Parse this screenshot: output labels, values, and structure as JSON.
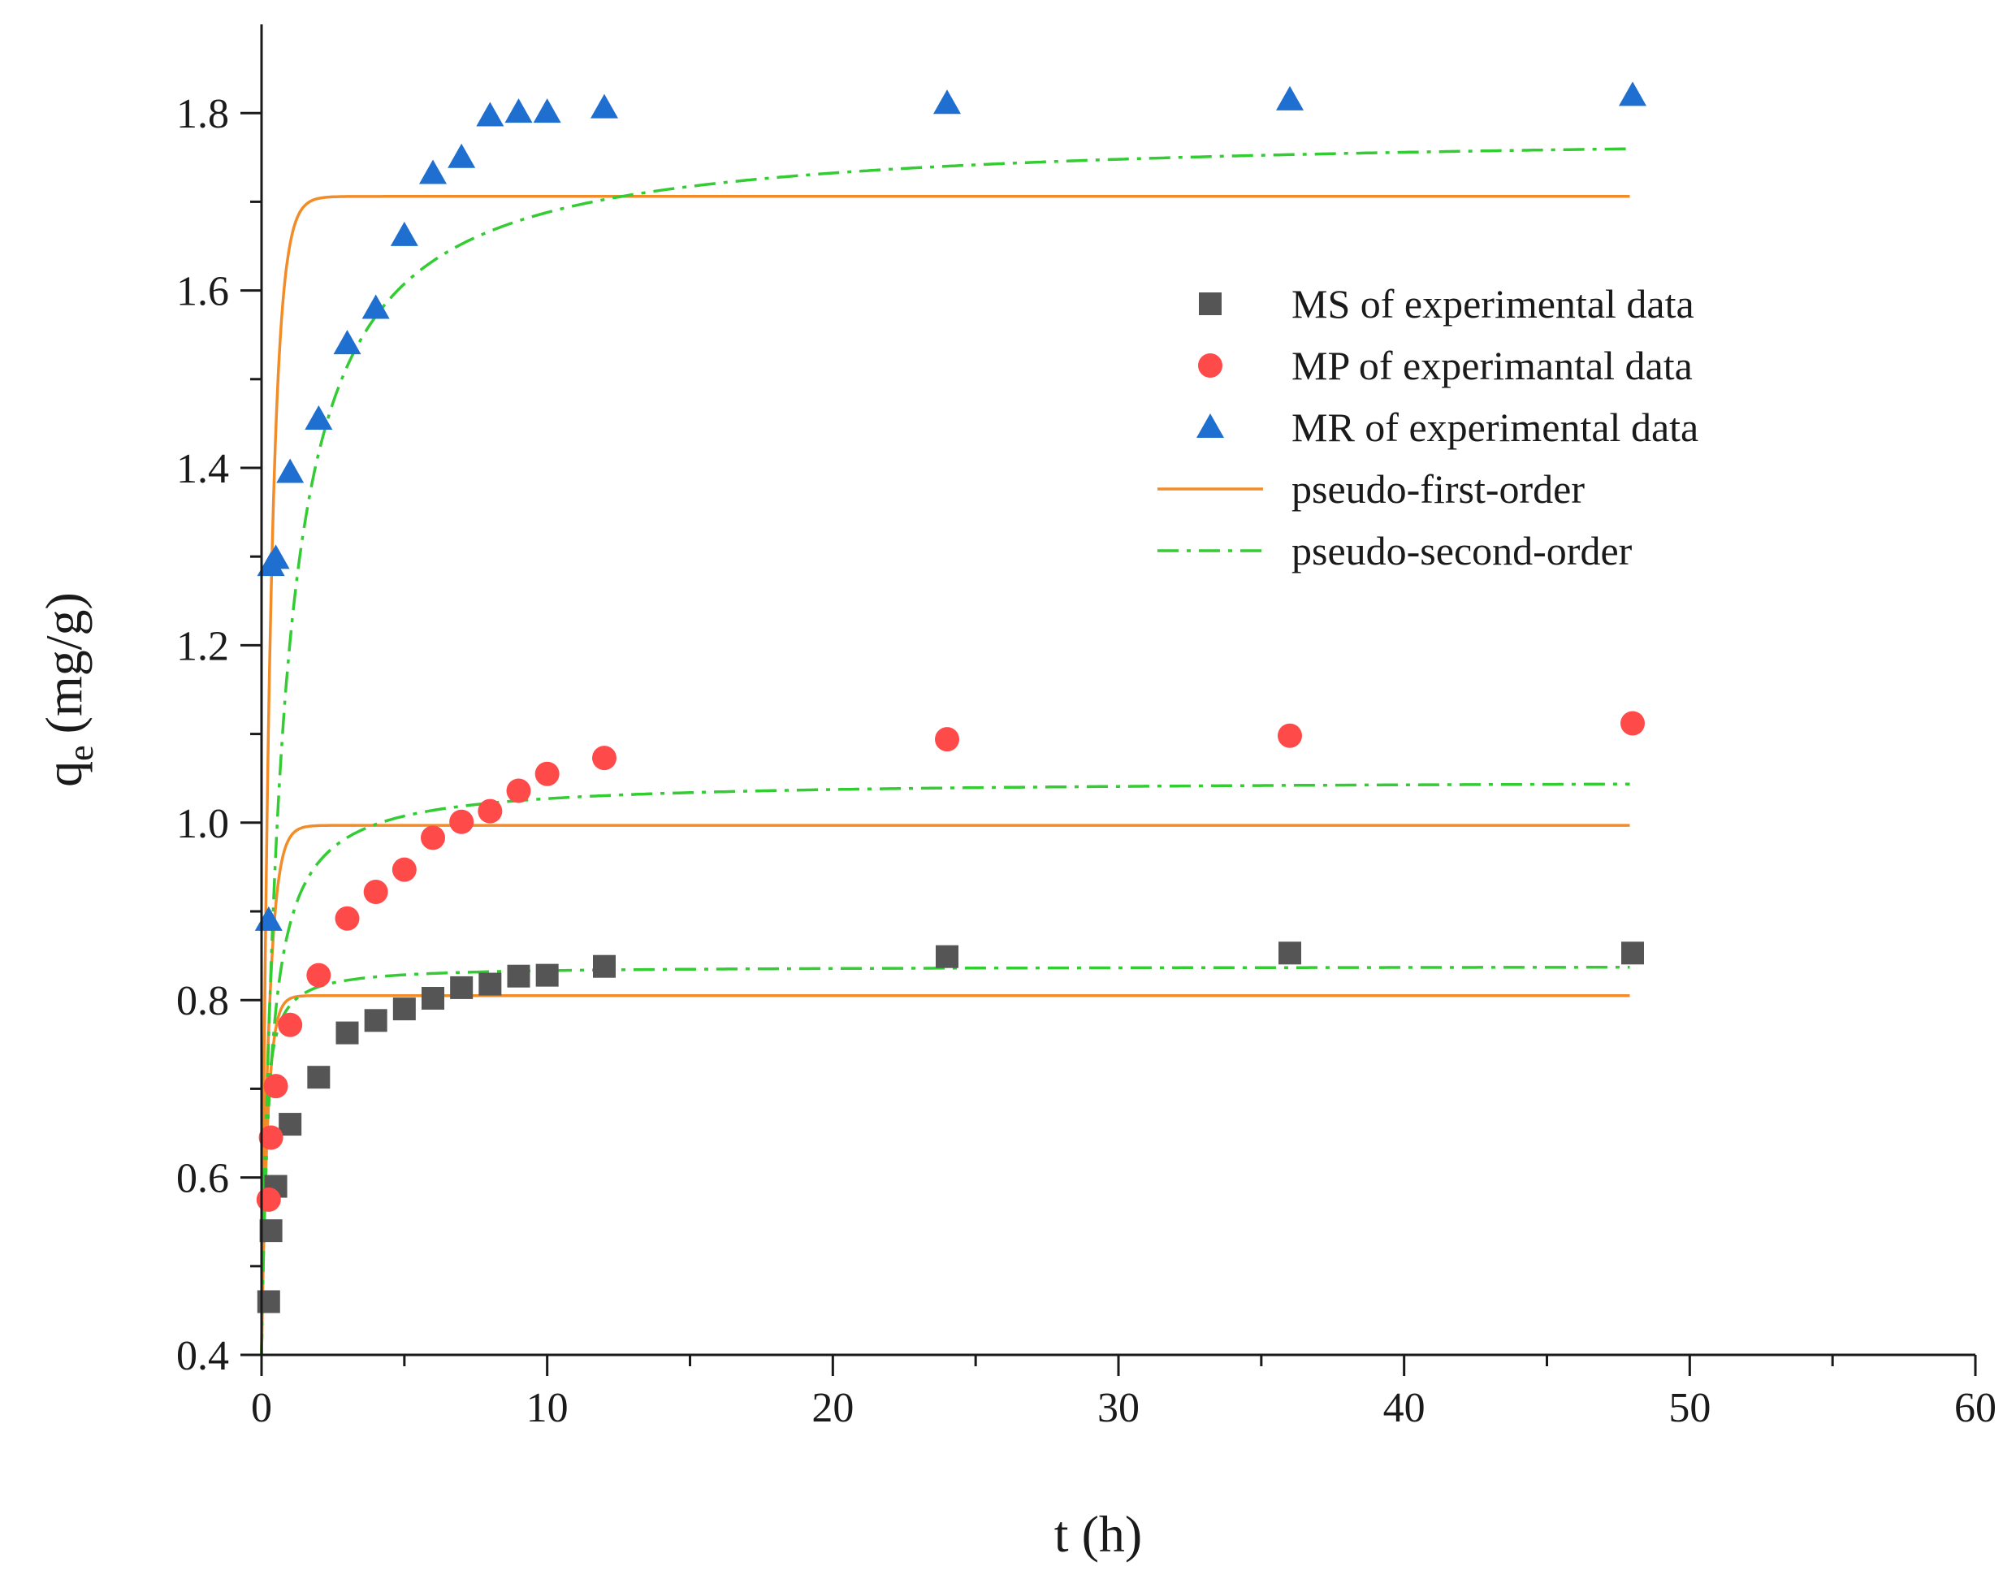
{
  "chart_data": {
    "type": "scatter",
    "xlabel": "t (h)",
    "ylabel_main": "q",
    "ylabel_sub": "e",
    "ylabel_unit": "(mg/g)",
    "xlim": [
      0,
      60
    ],
    "ylim": [
      0.4,
      1.9
    ],
    "x_ticks": [
      0,
      10,
      20,
      30,
      40,
      50,
      60
    ],
    "x_tick_labels": [
      "0",
      "10",
      "20",
      "30",
      "40",
      "50",
      "60"
    ],
    "y_ticks": [
      0.4,
      0.6,
      0.8,
      1.0,
      1.2,
      1.4,
      1.6,
      1.8
    ],
    "y_tick_labels": [
      "0.4",
      "0.6",
      "0.8",
      "1.0",
      "1.2",
      "1.4",
      "1.6",
      "1.8"
    ],
    "grid": false,
    "legend_position": "right-upper",
    "series": [
      {
        "name": "MS of experimental data",
        "marker": "square",
        "color": "#555555",
        "x": [
          0.25,
          0.33,
          0.5,
          1,
          2,
          3,
          4,
          5,
          6,
          7,
          8,
          9,
          10,
          12,
          24,
          36,
          48
        ],
        "y": [
          0.46,
          0.54,
          0.59,
          0.66,
          0.713,
          0.763,
          0.777,
          0.79,
          0.802,
          0.814,
          0.818,
          0.827,
          0.828,
          0.838,
          0.849,
          0.853,
          0.853
        ]
      },
      {
        "name": "MP of experimantal data",
        "marker": "circle",
        "color": "#ff4a4a",
        "x": [
          0.25,
          0.33,
          0.5,
          1,
          2,
          3,
          4,
          5,
          6,
          7,
          8,
          9,
          10,
          12,
          24,
          36,
          48
        ],
        "y": [
          0.575,
          0.645,
          0.703,
          0.772,
          0.828,
          0.892,
          0.922,
          0.947,
          0.983,
          1.001,
          1.013,
          1.036,
          1.055,
          1.073,
          1.094,
          1.098,
          1.112
        ]
      },
      {
        "name": "MR of experimental data",
        "marker": "triangle",
        "color": "#1e6fd0",
        "x": [
          0.25,
          0.33,
          0.5,
          1,
          2,
          3,
          4,
          5,
          6,
          7,
          8,
          9,
          10,
          12,
          24,
          36,
          48
        ],
        "y": [
          0.89,
          1.29,
          1.298,
          1.395,
          1.455,
          1.54,
          1.58,
          1.662,
          1.732,
          1.75,
          1.797,
          1.801,
          1.801,
          1.806,
          1.811,
          1.815,
          1.82
        ]
      }
    ],
    "fits": [
      {
        "name": "pseudo-first-order",
        "style": "solid",
        "color": "#f28c28",
        "curves": [
          {
            "for": "MS",
            "qe": 0.805,
            "k": 4.8,
            "q0": 0.4
          },
          {
            "for": "MP",
            "qe": 0.997,
            "k": 3.8,
            "q0": 0.4
          },
          {
            "for": "MR",
            "qe": 1.706,
            "k": 3.2,
            "q0": 0.4
          }
        ]
      },
      {
        "name": "pseudo-second-order",
        "style": "dashdot",
        "color": "#33cc33",
        "curves": [
          {
            "for": "MS",
            "qe": 0.838,
            "k": 9.0,
            "q0": 0.4
          },
          {
            "for": "MP",
            "qe": 1.048,
            "k": 3.0,
            "q0": 0.4
          },
          {
            "for": "MR",
            "qe": 1.78,
            "k": 1.4,
            "q0": 0.4
          }
        ]
      }
    ],
    "legend": [
      {
        "label": "MS of experimental data",
        "kind": "square",
        "color": "#555555"
      },
      {
        "label": "MP of experimantal data",
        "kind": "circle",
        "color": "#ff4a4a"
      },
      {
        "label": "MR of experimental data",
        "kind": "triangle",
        "color": "#1e6fd0"
      },
      {
        "label": "pseudo-first-order",
        "kind": "solid",
        "color": "#f28c28"
      },
      {
        "label": "pseudo-second-order",
        "kind": "dashdot",
        "color": "#33cc33"
      }
    ]
  }
}
